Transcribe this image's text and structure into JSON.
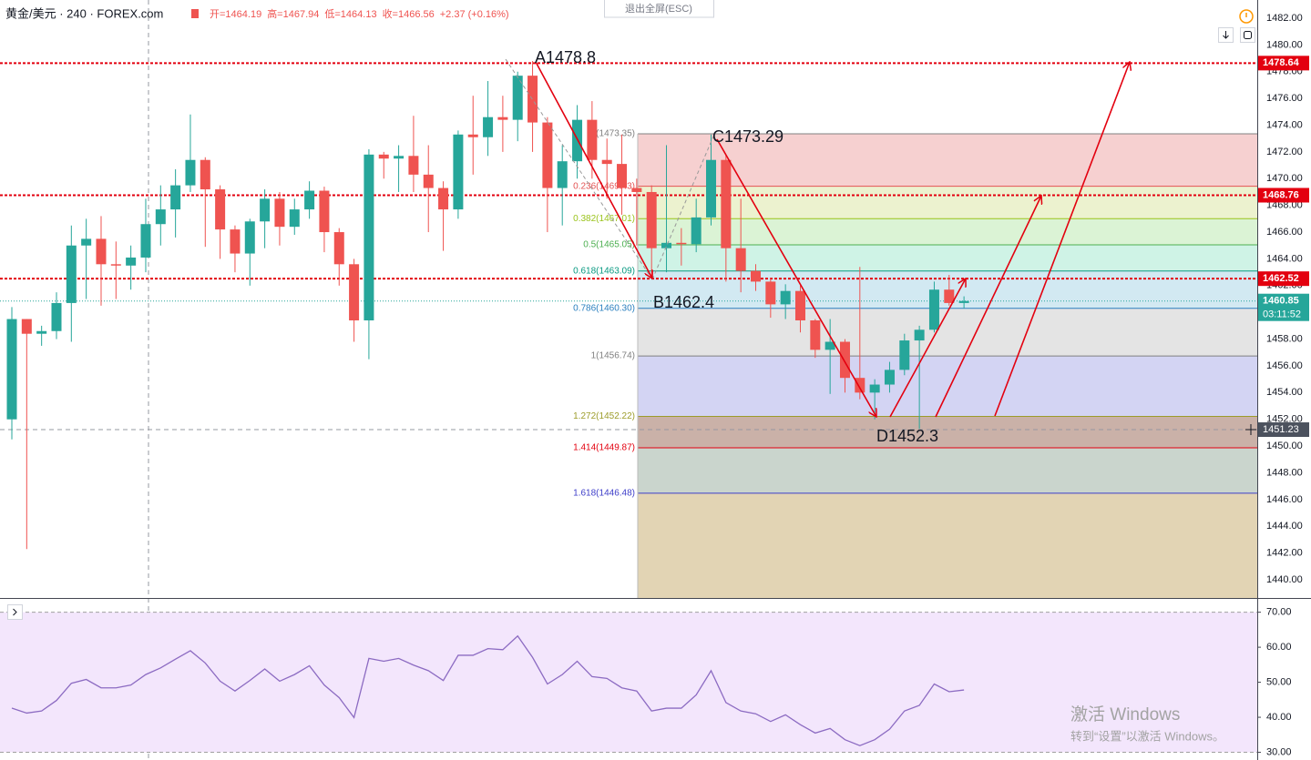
{
  "header": {
    "title": "黄金/美元 · 240 · FOREX.com",
    "ohlc": [
      "开=1464.19",
      "高=1467.94",
      "低=1464.13",
      "收=1466.56",
      "+2.37 (+0.16%)"
    ],
    "exit_fullscreen": "退出全屏(ESC)"
  },
  "annotations": [
    "A1478.8",
    "B1462.4",
    "C1473.29",
    "D1452.3"
  ],
  "watermark": [
    "激活 Windows",
    "转到“设置”以激活 Windows。"
  ],
  "chart_data": {
    "type": "candlestick",
    "up_color": "#26a69a",
    "down_color": "#ef5350",
    "open": [
      1452.0,
      1459.5,
      1458.4,
      1458.6,
      1460.7,
      1465.0,
      1465.5,
      1463.6,
      1463.5,
      1464.1,
      1466.6,
      1467.7,
      1469.5,
      1471.4,
      1469.2,
      1466.2,
      1464.4,
      1466.8,
      1468.5,
      1466.4,
      1467.7,
      1469.1,
      1466.0,
      1463.6,
      1459.4,
      1471.8,
      1471.5,
      1471.7,
      1470.3,
      1469.3,
      1467.7,
      1473.3,
      1473.1,
      1474.6,
      1474.4,
      1477.7,
      1474.2,
      1469.3,
      1471.3,
      1474.4,
      1471.4,
      1471.1,
      1469.3,
      1469.0,
      1464.8,
      1465.2,
      1465.1,
      1467.1,
      1471.4,
      1464.8,
      1463.1,
      1462.3,
      1460.6,
      1461.6,
      1459.4,
      1457.2,
      1457.8,
      1455.1,
      1454.0,
      1454.6,
      1455.7,
      1457.9,
      1458.7,
      1461.7,
      1460.7
    ],
    "high": [
      1460.4,
      1459.5,
      1459.0,
      1461.5,
      1466.5,
      1467.0,
      1467.2,
      1465.3,
      1465.0,
      1468.5,
      1469.5,
      1470.7,
      1474.8,
      1471.6,
      1469.5,
      1466.5,
      1467.0,
      1469.2,
      1469.0,
      1468.5,
      1469.8,
      1469.4,
      1466.3,
      1464.0,
      1472.2,
      1472.0,
      1472.5,
      1474.7,
      1472.5,
      1469.8,
      1473.6,
      1476.2,
      1477.3,
      1476.2,
      1478.0,
      1478.8,
      1474.6,
      1472.5,
      1475.5,
      1475.8,
      1473.0,
      1473.3,
      1470.0,
      1469.5,
      1472.5,
      1466.3,
      1468.5,
      1473.3,
      1471.8,
      1468.5,
      1463.6,
      1462.6,
      1462.1,
      1462.0,
      1459.5,
      1459.5,
      1458.0,
      1463.4,
      1455.0,
      1456.3,
      1458.4,
      1459.0,
      1462.3,
      1462.8,
      1461.2
    ],
    "low": [
      1450.5,
      1442.3,
      1457.5,
      1458.0,
      1457.8,
      1461.0,
      1460.5,
      1461.0,
      1461.7,
      1463.0,
      1465.0,
      1465.6,
      1469.0,
      1464.9,
      1464.0,
      1463.0,
      1462.0,
      1464.8,
      1465.0,
      1465.8,
      1467.0,
      1464.5,
      1462.0,
      1457.8,
      1456.5,
      1470.0,
      1469.0,
      1469.0,
      1466.0,
      1464.6,
      1467.0,
      1470.3,
      1471.7,
      1472.0,
      1472.8,
      1472.0,
      1466.0,
      1466.5,
      1470.0,
      1470.0,
      1468.5,
      1467.3,
      1465.0,
      1462.5,
      1463.0,
      1463.5,
      1464.5,
      1466.5,
      1462.3,
      1461.5,
      1461.6,
      1459.6,
      1459.5,
      1458.5,
      1456.6,
      1453.9,
      1454.0,
      1453.5,
      1452.0,
      1454.0,
      1455.3,
      1451.3,
      1458.5,
      1460.5,
      1460.3
    ],
    "close": [
      1459.5,
      1458.4,
      1458.6,
      1460.7,
      1465.0,
      1465.5,
      1463.6,
      1463.5,
      1464.1,
      1466.6,
      1467.7,
      1469.5,
      1471.4,
      1469.2,
      1466.2,
      1464.4,
      1466.8,
      1468.5,
      1466.4,
      1467.7,
      1469.1,
      1466.0,
      1463.6,
      1459.4,
      1471.8,
      1471.5,
      1471.7,
      1470.3,
      1469.3,
      1467.7,
      1473.3,
      1473.1,
      1474.6,
      1474.4,
      1477.7,
      1474.2,
      1469.3,
      1471.3,
      1474.4,
      1471.4,
      1471.1,
      1469.3,
      1469.0,
      1464.8,
      1465.2,
      1465.1,
      1467.1,
      1471.4,
      1464.8,
      1463.1,
      1462.3,
      1460.6,
      1461.6,
      1459.4,
      1457.2,
      1457.8,
      1455.1,
      1454.0,
      1454.6,
      1455.7,
      1457.9,
      1458.7,
      1461.7,
      1460.7,
      1460.85
    ],
    "ylim": [
      1438.64,
      1483.36
    ],
    "yticks": [
      {
        "value": 1440,
        "label": "1440.00"
      },
      {
        "value": 1442,
        "label": "1442.00"
      },
      {
        "value": 1444,
        "label": "1444.00"
      },
      {
        "value": 1446,
        "label": "1446.00"
      },
      {
        "value": 1448,
        "label": "1448.00"
      },
      {
        "value": 1450,
        "label": "1450.00"
      },
      {
        "value": 1452,
        "label": "1452.00"
      },
      {
        "value": 1454,
        "label": "1454.00"
      },
      {
        "value": 1456,
        "label": "1456.00"
      },
      {
        "value": 1458,
        "label": "1458.00"
      },
      {
        "value": 1460,
        "label": "1460.00"
      },
      {
        "value": 1462,
        "label": "1462.00"
      },
      {
        "value": 1464,
        "label": "1464.00"
      },
      {
        "value": 1466,
        "label": "1466.00"
      },
      {
        "value": 1468,
        "label": "1468.00"
      },
      {
        "value": 1470,
        "label": "1470.00"
      },
      {
        "value": 1472,
        "label": "1472.00"
      },
      {
        "value": 1474,
        "label": "1474.00"
      },
      {
        "value": 1476,
        "label": "1476.00"
      },
      {
        "value": 1478,
        "label": "1478.00"
      },
      {
        "value": 1480,
        "label": "1480.00"
      },
      {
        "value": 1482,
        "label": "1482.00"
      }
    ],
    "grid": true,
    "price_lines": [
      {
        "value": 1478.64,
        "label": "1478.64"
      },
      {
        "value": 1468.76,
        "label": "1468.76"
      },
      {
        "value": 1462.52,
        "label": "1462.52"
      }
    ],
    "price_line_color": "#e3000f",
    "last_price": {
      "value": 1460.85,
      "label": "1460.85",
      "countdown": "03:11:52",
      "color": "#26a69a"
    },
    "crosshair": {
      "value": 1451.23,
      "label": "1451.23"
    },
    "fib": [
      {
        "value": 1473.35,
        "label": "0(1473.35)",
        "color": "#808080",
        "fill": "#f6d0d0"
      },
      {
        "value": 1469.43,
        "label": "0.236(1469.43)",
        "color": "#e45353",
        "fill": "#ecf2cf"
      },
      {
        "value": 1467.01,
        "label": "0.382(1467.01)",
        "color": "#9ac31b",
        "fill": "#dbf3d5"
      },
      {
        "value": 1465.05,
        "label": "0.5(1465.05)",
        "color": "#4caf50",
        "fill": "#cff3e6"
      },
      {
        "value": 1463.09,
        "label": "0.618(1463.09)",
        "color": "#089981",
        "fill": "#d2e9f2"
      },
      {
        "value": 1460.3,
        "label": "0.786(1460.30)",
        "color": "#2a7fbf",
        "fill": "#e4e4e4"
      },
      {
        "value": 1456.74,
        "label": "1(1456.74)",
        "color": "#808080",
        "fill": "#d3d4f3"
      },
      {
        "value": 1452.22,
        "label": "1.272(1452.22)",
        "color": "#9c9c2a",
        "fill": "#cab1a8"
      },
      {
        "value": 1449.87,
        "label": "1.414(1449.87)",
        "color": "#e3000f",
        "fill": "#cad5cd"
      },
      {
        "value": 1446.48,
        "label": "1.618(1446.48)",
        "color": "#3e3ec9",
        "fill": "#e2d4b4"
      }
    ],
    "rsi": {
      "color": "#8c6bc2",
      "band_color": "#f3e6fc",
      "values": [
        42.6,
        41.2,
        41.8,
        44.8,
        49.7,
        50.8,
        48.4,
        48.4,
        49.2,
        52.2,
        54.1,
        56.6,
        59.0,
        55.5,
        50.3,
        47.5,
        50.5,
        53.8,
        50.3,
        52.2,
        54.7,
        49.2,
        45.6,
        39.9,
        56.8,
        56.0,
        56.8,
        54.9,
        53.3,
        50.5,
        57.7,
        57.7,
        59.6,
        59.3,
        63.2,
        57.1,
        49.5,
        52.2,
        56.0,
        51.6,
        51.1,
        48.4,
        47.5,
        41.8,
        42.6,
        42.6,
        46.4,
        53.3,
        44.2,
        41.8,
        41.0,
        38.8,
        40.7,
        37.9,
        35.5,
        36.8,
        33.6,
        31.9,
        33.6,
        36.6,
        41.8,
        43.4,
        49.5,
        47.3,
        47.8
      ],
      "ylim": [
        27.8,
        73.8
      ],
      "yticks": [
        {
          "value": 30,
          "label": "30.00"
        },
        {
          "value": 40,
          "label": "40.00"
        },
        {
          "value": 50,
          "label": "50.00"
        },
        {
          "value": 60,
          "label": "60.00"
        },
        {
          "value": 70,
          "label": "70.00"
        }
      ],
      "band": [
        30,
        70
      ]
    }
  }
}
